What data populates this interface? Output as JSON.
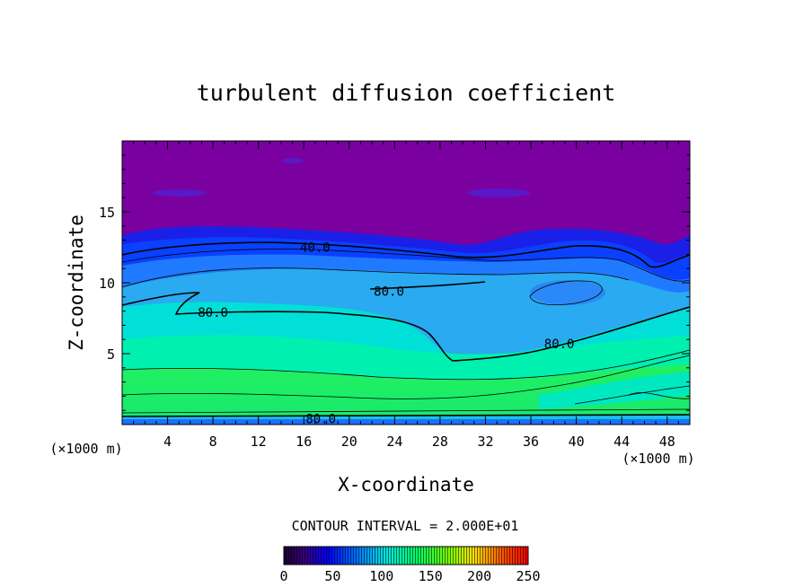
{
  "chart_data": {
    "type": "contour",
    "title": "turbulent diffusion coefficient",
    "xlabel": "X-coordinate",
    "ylabel": "Z-coordinate",
    "x_unit_left": "(×1000 m)",
    "x_unit_right": "(×1000 m)",
    "xlim": [
      0,
      50
    ],
    "ylim": [
      0,
      20
    ],
    "x_ticks": [
      4,
      8,
      12,
      16,
      20,
      24,
      28,
      32,
      36,
      40,
      44,
      48
    ],
    "y_ticks": [
      5,
      10,
      15
    ],
    "contour_interval_label": "CONTOUR INTERVAL = 2.000E+01",
    "contour_labels": [
      {
        "text": "40.0",
        "x": 17,
        "z": 12.5
      },
      {
        "text": "80.0",
        "x": 23.5,
        "z": 9.4
      },
      {
        "text": "80.0",
        "x": 8,
        "z": 7.9
      },
      {
        "text": "80.0",
        "x": 38.5,
        "z": 5.7
      },
      {
        "text": "80.0",
        "x": 17.5,
        "z": 0.4
      }
    ],
    "colorbar": {
      "min": 0,
      "max": 250,
      "tick_labels": [
        "0",
        "50",
        "100",
        "150",
        "200",
        "250"
      ],
      "tick_values": [
        0,
        50,
        100,
        150,
        200,
        250
      ]
    },
    "colors": {
      "background_high": "#7a00a0",
      "band_blue": "#0a2aff",
      "band_mid": "#1f7aff",
      "cyan": "#00e8d8",
      "green": "#22ee55"
    }
  }
}
